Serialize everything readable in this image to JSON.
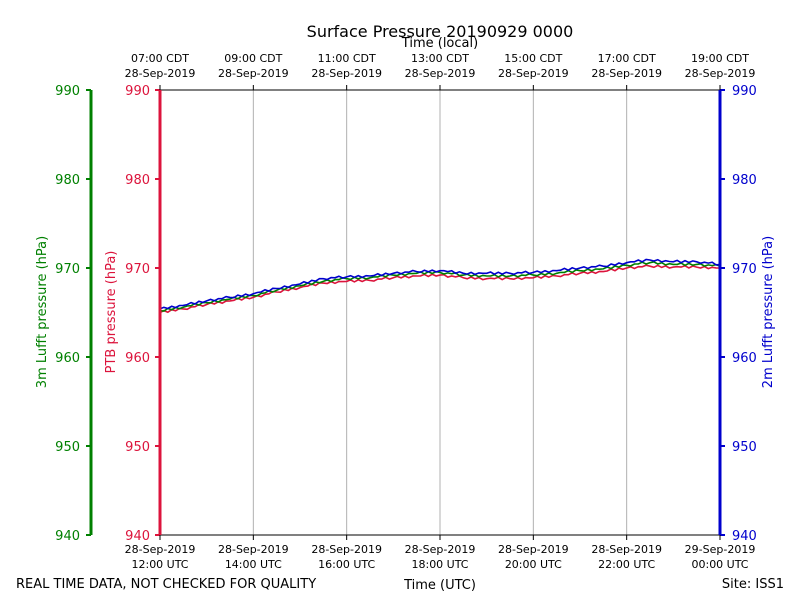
{
  "chart_data": {
    "type": "line",
    "title": "Surface Pressure 20190929 0000",
    "top_axis_label": "Time (local)",
    "xlabel": "Time (UTC)",
    "footer_left": "REAL TIME DATA, NOT CHECKED FOR QUALITY",
    "footer_right": "Site: ISS1",
    "x_range_hours": [
      12,
      24
    ],
    "ylim": [
      940,
      990
    ],
    "y_ticks": [
      {
        "value": 940,
        "label": "940"
      },
      {
        "value": 950,
        "label": "950"
      },
      {
        "value": 960,
        "label": "960"
      },
      {
        "value": 970,
        "label": "970"
      },
      {
        "value": 980,
        "label": "980"
      },
      {
        "value": 990,
        "label": "990"
      }
    ],
    "bottom_ticks": [
      {
        "hour": 12,
        "date": "28-Sep-2019",
        "time": "12:00 UTC"
      },
      {
        "hour": 14,
        "date": "28-Sep-2019",
        "time": "14:00 UTC"
      },
      {
        "hour": 16,
        "date": "28-Sep-2019",
        "time": "16:00 UTC"
      },
      {
        "hour": 18,
        "date": "28-Sep-2019",
        "time": "18:00 UTC"
      },
      {
        "hour": 20,
        "date": "28-Sep-2019",
        "time": "20:00 UTC"
      },
      {
        "hour": 22,
        "date": "28-Sep-2019",
        "time": "22:00 UTC"
      },
      {
        "hour": 24,
        "date": "29-Sep-2019",
        "time": "00:00 UTC"
      }
    ],
    "top_ticks": [
      {
        "hour": 12,
        "time": "07:00 CDT",
        "date": "28-Sep-2019"
      },
      {
        "hour": 14,
        "time": "09:00 CDT",
        "date": "28-Sep-2019"
      },
      {
        "hour": 16,
        "time": "11:00 CDT",
        "date": "28-Sep-2019"
      },
      {
        "hour": 18,
        "time": "13:00 CDT",
        "date": "28-Sep-2019"
      },
      {
        "hour": 20,
        "time": "15:00 CDT",
        "date": "28-Sep-2019"
      },
      {
        "hour": 22,
        "time": "17:00 CDT",
        "date": "28-Sep-2019"
      },
      {
        "hour": 24,
        "time": "19:00 CDT",
        "date": "28-Sep-2019"
      }
    ],
    "axes": {
      "green": {
        "label": "3m Lufft pressure (hPa)",
        "color": "#008000"
      },
      "red": {
        "label": "PTB pressure (hPa)",
        "color": "#dc143c"
      },
      "blue": {
        "label": "2m Lufft pressure (hPa)",
        "color": "#0000cd"
      }
    },
    "series": [
      {
        "name": "PTB pressure (hPa)",
        "color": "#dc143c",
        "x": [
          12.0,
          12.5,
          13.0,
          13.5,
          14.0,
          14.5,
          15.0,
          15.5,
          16.0,
          16.5,
          17.0,
          17.5,
          18.0,
          18.5,
          19.0,
          19.5,
          20.0,
          20.5,
          21.0,
          21.5,
          22.0,
          22.5,
          23.0,
          23.5,
          24.0
        ],
        "values": [
          965.0,
          965.4,
          965.9,
          966.3,
          966.7,
          967.3,
          967.8,
          968.3,
          968.5,
          968.6,
          968.9,
          969.1,
          969.2,
          968.9,
          968.8,
          968.8,
          968.9,
          969.1,
          969.4,
          969.6,
          970.0,
          970.2,
          970.1,
          970.1,
          970.0
        ]
      },
      {
        "name": "3m Lufft pressure (hPa)",
        "color": "#008000",
        "x": [
          12.0,
          12.5,
          13.0,
          13.5,
          14.0,
          14.5,
          15.0,
          15.5,
          16.0,
          16.5,
          17.0,
          17.5,
          18.0,
          18.5,
          19.0,
          19.5,
          20.0,
          20.5,
          21.0,
          21.5,
          22.0,
          22.5,
          23.0,
          23.5,
          24.0
        ],
        "values": [
          965.2,
          965.6,
          966.1,
          966.5,
          966.9,
          967.5,
          968.0,
          968.5,
          968.8,
          968.9,
          969.2,
          969.4,
          969.5,
          969.2,
          969.1,
          969.1,
          969.2,
          969.4,
          969.7,
          969.9,
          970.3,
          970.6,
          970.4,
          970.4,
          970.2
        ]
      },
      {
        "name": "2m Lufft pressure (hPa)",
        "color": "#0000cd",
        "x": [
          12.0,
          12.5,
          13.0,
          13.5,
          14.0,
          14.5,
          15.0,
          15.5,
          16.0,
          16.5,
          17.0,
          17.5,
          18.0,
          18.5,
          19.0,
          19.5,
          20.0,
          20.5,
          21.0,
          21.5,
          22.0,
          22.5,
          23.0,
          23.5,
          24.0
        ],
        "values": [
          965.4,
          965.8,
          966.3,
          966.7,
          967.1,
          967.7,
          968.2,
          968.8,
          969.0,
          969.1,
          969.4,
          969.6,
          969.7,
          969.4,
          969.4,
          969.4,
          969.5,
          969.7,
          970.0,
          970.2,
          970.6,
          970.9,
          970.7,
          970.7,
          970.4
        ]
      }
    ]
  }
}
